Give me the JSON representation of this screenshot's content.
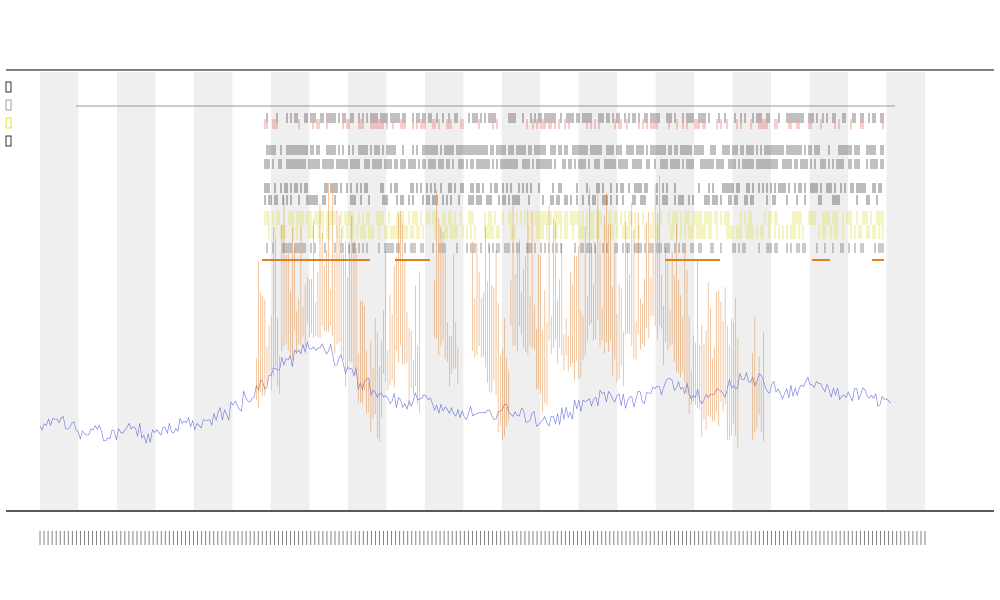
{
  "chart_data": {
    "type": "line",
    "title": "",
    "subtitle": "",
    "xlabel": "",
    "ylabel": "",
    "legend": {
      "placement": "top-left",
      "entries": [
        {
          "color": "#000000"
        },
        {
          "color": "#888888"
        },
        {
          "color": "#e0dc00"
        },
        {
          "color": "#000000"
        }
      ]
    },
    "background_bands": {
      "count": 23,
      "color": "#efefef"
    },
    "x_domain": [
      0,
      1000
    ],
    "y_domain": [
      0,
      100
    ],
    "tick_label_count": 220,
    "track_rows": [
      {
        "kind": "gray-line",
        "color": "#999999",
        "span": [
          0.04,
          0.95
        ]
      },
      {
        "kind": "black-ticks",
        "color": "#222222",
        "density": 0.55
      },
      {
        "kind": "red-ticks",
        "color": "#e05050",
        "density": 0.35
      },
      {
        "kind": "black-ticks",
        "color": "#222222",
        "density": 0.7
      },
      {
        "kind": "black-ticks",
        "color": "#222222",
        "density": 0.7
      },
      {
        "kind": "black-ticks",
        "color": "#111111",
        "density": 0.4
      },
      {
        "kind": "black-ticks",
        "color": "#111111",
        "density": 0.4
      },
      {
        "kind": "yellow-ticks",
        "color": "#dcdc30",
        "density": 0.55
      },
      {
        "kind": "yellow-ticks",
        "color": "#dcdc30",
        "density": 0.55
      },
      {
        "kind": "black-ticks",
        "color": "#444444",
        "density": 0.5
      },
      {
        "kind": "orange-segments",
        "color": "#e08020"
      }
    ],
    "series": [
      {
        "color": "#4a55d8",
        "values": [
          14,
          16,
          13,
          11,
          12,
          10,
          11,
          12,
          10,
          11,
          12,
          14,
          13,
          15,
          17,
          19,
          22,
          26,
          30,
          33,
          36,
          37,
          36,
          33,
          29,
          26,
          23,
          21,
          20,
          21,
          22,
          19,
          18,
          17,
          16,
          17,
          18,
          17,
          16,
          15,
          15,
          17,
          19,
          21,
          22,
          21,
          20,
          22,
          24,
          26,
          25,
          23,
          21,
          23,
          26,
          28,
          27,
          25,
          23,
          24,
          26,
          25,
          23,
          22,
          23,
          21,
          20
        ]
      },
      {
        "color": "#e07a22",
        "values": [
          0,
          0,
          0,
          0,
          0,
          0,
          0,
          0,
          0,
          0,
          0,
          0,
          0,
          0,
          0,
          0,
          0,
          31,
          36,
          44,
          48,
          52,
          50,
          45,
          38,
          30,
          22,
          34,
          44,
          30,
          0,
          46,
          38,
          0,
          42,
          36,
          22,
          48,
          46,
          30,
          44,
          42,
          40,
          50,
          46,
          38,
          46,
          48,
          52,
          44,
          36,
          30,
          22,
          26,
          20,
          0,
          22,
          0,
          0,
          0,
          0,
          0,
          0,
          0,
          0,
          0,
          0
        ]
      }
    ]
  }
}
